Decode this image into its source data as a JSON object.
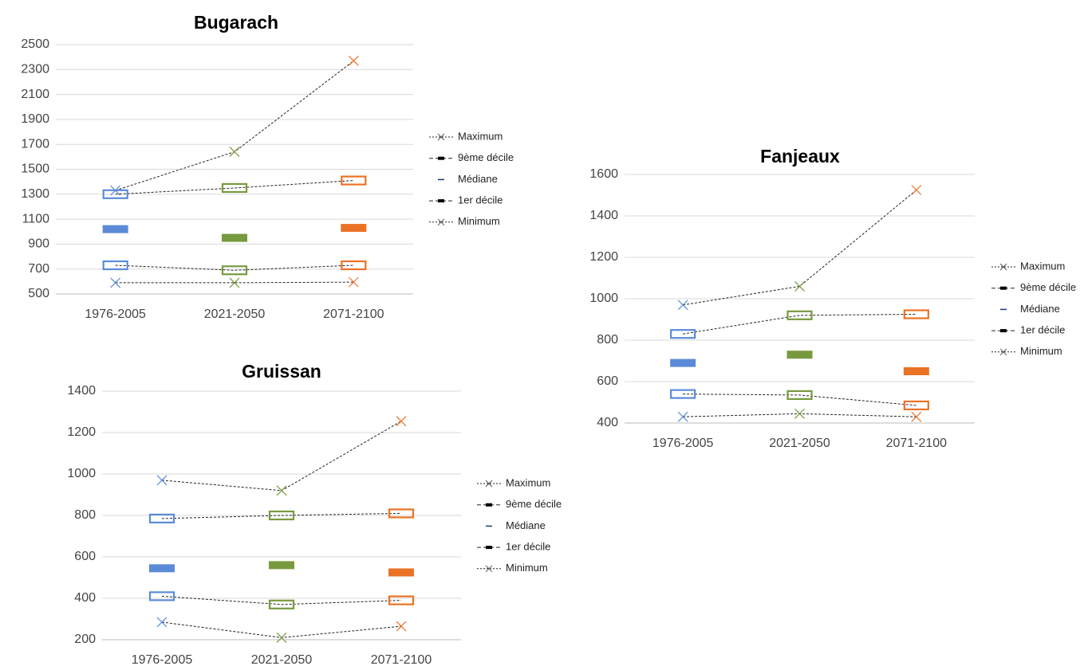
{
  "chart_data": [
    {
      "type": "line",
      "title": "Bugarach",
      "categories": [
        "1976-2005",
        "2021-2050",
        "2071-2100"
      ],
      "colors": [
        "#5b8bd8",
        "#779a3e",
        "#eb7225"
      ],
      "ylim": [
        500,
        2500
      ],
      "yticks": [
        500,
        700,
        900,
        1100,
        1300,
        1500,
        1700,
        1900,
        2100,
        2300,
        2500
      ],
      "grid": true,
      "series": [
        {
          "name": "Maximum",
          "marker": "x",
          "line": true,
          "values": [
            1330,
            1640,
            2370
          ]
        },
        {
          "name": "9ème décile",
          "marker": "box",
          "line": true,
          "values": [
            1300,
            1350,
            1410
          ]
        },
        {
          "name": "Médiane",
          "marker": "bar",
          "line": false,
          "values": [
            1020,
            950,
            1030
          ]
        },
        {
          "name": "1er décile",
          "marker": "box",
          "line": true,
          "values": [
            730,
            690,
            730
          ]
        },
        {
          "name": "Minimum",
          "marker": "x",
          "line": true,
          "values": [
            590,
            590,
            595
          ]
        }
      ]
    },
    {
      "type": "line",
      "title": "Fanjeaux",
      "categories": [
        "1976-2005",
        "2021-2050",
        "2071-2100"
      ],
      "colors": [
        "#5b8bd8",
        "#779a3e",
        "#eb7225"
      ],
      "ylim": [
        400,
        1600
      ],
      "yticks": [
        400,
        600,
        800,
        1000,
        1200,
        1400,
        1600
      ],
      "grid": true,
      "series": [
        {
          "name": "Maximum",
          "marker": "x",
          "line": true,
          "values": [
            970,
            1060,
            1525
          ]
        },
        {
          "name": "9ème décile",
          "marker": "box",
          "line": true,
          "values": [
            830,
            920,
            925
          ]
        },
        {
          "name": "Médiane",
          "marker": "bar",
          "line": false,
          "values": [
            690,
            730,
            650
          ]
        },
        {
          "name": "1er décile",
          "marker": "box",
          "line": true,
          "values": [
            540,
            535,
            485
          ]
        },
        {
          "name": "Minimum",
          "marker": "x",
          "line": true,
          "values": [
            430,
            445,
            430
          ]
        }
      ]
    },
    {
      "type": "line",
      "title": "Gruissan",
      "categories": [
        "1976-2005",
        "2021-2050",
        "2071-2100"
      ],
      "colors": [
        "#5b8bd8",
        "#779a3e",
        "#eb7225"
      ],
      "ylim": [
        200,
        1400
      ],
      "yticks": [
        200,
        400,
        600,
        800,
        1000,
        1200,
        1400
      ],
      "grid": true,
      "series": [
        {
          "name": "Maximum",
          "marker": "x",
          "line": true,
          "values": [
            970,
            920,
            1255
          ]
        },
        {
          "name": "9ème décile",
          "marker": "box",
          "line": true,
          "values": [
            785,
            800,
            810
          ]
        },
        {
          "name": "Médiane",
          "marker": "bar",
          "line": false,
          "values": [
            545,
            560,
            525
          ]
        },
        {
          "name": "1er décile",
          "marker": "box",
          "line": true,
          "values": [
            410,
            370,
            390
          ]
        },
        {
          "name": "Minimum",
          "marker": "x",
          "line": true,
          "values": [
            285,
            210,
            265
          ]
        }
      ]
    }
  ]
}
